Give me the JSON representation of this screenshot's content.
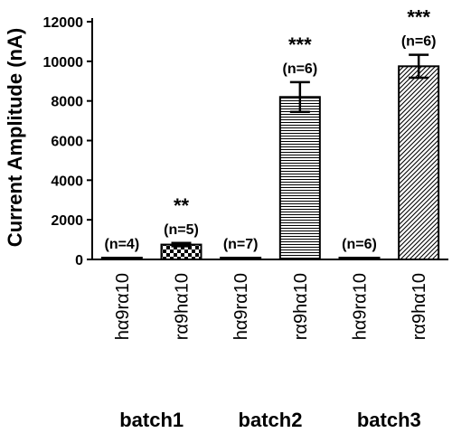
{
  "chart_data": {
    "type": "bar",
    "ylabel": "Current Amplitude (nA)",
    "ylim": [
      0,
      12000
    ],
    "yticks": [
      0,
      2000,
      4000,
      6000,
      8000,
      10000,
      12000
    ],
    "categories": [
      "hα9rα10",
      "rα9hα10",
      "hα9rα10",
      "rα9hα10",
      "hα9rα10",
      "rα9hα10"
    ],
    "values": [
      0,
      750,
      30,
      8200,
      30,
      9750
    ],
    "errors": [
      0,
      80,
      0,
      750,
      0,
      580
    ],
    "n_labels": [
      "(n=4)",
      "(n=5)",
      "(n=7)",
      "(n=6)",
      "(n=6)",
      "(n=6)"
    ],
    "significance": [
      "",
      "**",
      "",
      "***",
      "",
      "***"
    ],
    "patterns": [
      "solid",
      "checker",
      "solid",
      "horizontal",
      "solid",
      "diagonal"
    ],
    "groups": [
      "batch1",
      "batch2",
      "batch3"
    ],
    "bar_color": "#000000"
  }
}
